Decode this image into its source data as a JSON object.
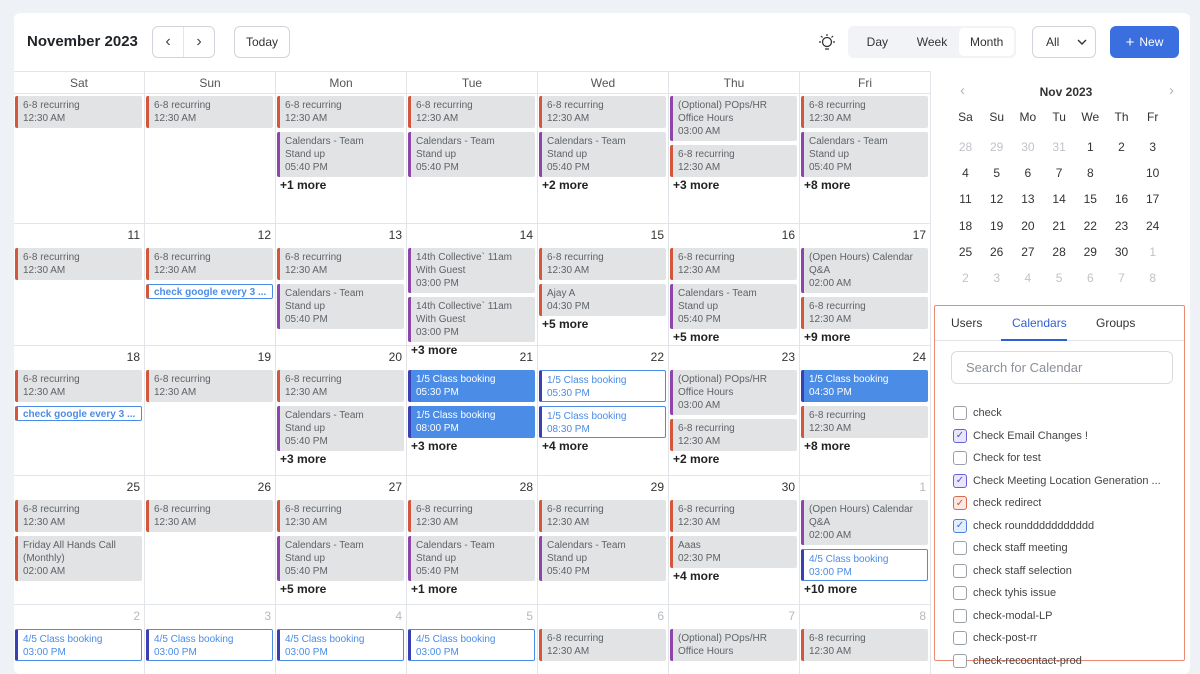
{
  "header": {
    "month_title": "November 2023",
    "prev_icon": "‹",
    "next_icon": "›",
    "today_label": "Today",
    "views": [
      "Day",
      "Week",
      "Month"
    ],
    "active_view": "Month",
    "filter_value": "All",
    "new_label": "New"
  },
  "weekdays": [
    "Sat",
    "Sun",
    "Mon",
    "Tue",
    "Wed",
    "Thu",
    "Fri"
  ],
  "weeks": [
    [
      {
        "day": "",
        "dim": false,
        "events": [
          {
            "l1": "6-8 recurring",
            "l2": "12:30 AM",
            "kind": "red"
          }
        ],
        "more": ""
      },
      {
        "day": "",
        "dim": false,
        "events": [
          {
            "l1": "6-8 recurring",
            "l2": "12:30 AM",
            "kind": "red"
          }
        ],
        "more": ""
      },
      {
        "day": "",
        "dim": false,
        "events": [
          {
            "l1": "6-8 recurring",
            "l2": "12:30 AM",
            "kind": "red"
          },
          {
            "l1": "Calendars - Team",
            "l2": "Stand up",
            "l3": "05:40 PM",
            "kind": "purple"
          }
        ],
        "more": "+1 more"
      },
      {
        "day": "",
        "dim": false,
        "events": [
          {
            "l1": "6-8 recurring",
            "l2": "12:30 AM",
            "kind": "red"
          },
          {
            "l1": "Calendars - Team",
            "l2": "Stand up",
            "l3": "05:40 PM",
            "kind": "purple"
          }
        ],
        "more": ""
      },
      {
        "day": "",
        "dim": false,
        "events": [
          {
            "l1": "6-8 recurring",
            "l2": "12:30 AM",
            "kind": "red"
          },
          {
            "l1": "Calendars - Team",
            "l2": "Stand up",
            "l3": "05:40 PM",
            "kind": "purple"
          }
        ],
        "more": "+2 more"
      },
      {
        "day": "",
        "dim": false,
        "events": [
          {
            "l1": "(Optional) POps/HR",
            "l2": "Office Hours",
            "l3": "03:00 AM",
            "kind": "purple"
          },
          {
            "l1": "6-8 recurring",
            "l2": "12:30 AM",
            "kind": "red"
          }
        ],
        "more": "+3 more"
      },
      {
        "day": "",
        "dim": false,
        "events": [
          {
            "l1": "6-8 recurring",
            "l2": "12:30 AM",
            "kind": "red"
          },
          {
            "l1": "Calendars - Team",
            "l2": "Stand up",
            "l3": "05:40 PM",
            "kind": "purple"
          }
        ],
        "more": "+8 more"
      }
    ],
    [
      {
        "day": "11",
        "dim": false,
        "events": [
          {
            "l1": "6-8 recurring",
            "l2": "12:30 AM",
            "kind": "red"
          }
        ],
        "more": ""
      },
      {
        "day": "12",
        "dim": false,
        "events": [
          {
            "l1": "6-8 recurring",
            "l2": "12:30 AM",
            "kind": "red"
          },
          {
            "l1": "check google every 3 ...",
            "kind": "google"
          }
        ],
        "more": ""
      },
      {
        "day": "13",
        "dim": false,
        "events": [
          {
            "l1": "6-8 recurring",
            "l2": "12:30 AM",
            "kind": "red"
          },
          {
            "l1": "Calendars - Team",
            "l2": "Stand up",
            "l3": "05:40 PM",
            "kind": "purple"
          }
        ],
        "more": ""
      },
      {
        "day": "14",
        "dim": false,
        "events": [
          {
            "l1": "14th Collective` 11am",
            "l2": "With Guest",
            "l3": "03:00 PM",
            "kind": "purple"
          },
          {
            "l1": "14th Collective` 11am",
            "l2": "With Guest",
            "l3": "03:00 PM",
            "kind": "purple"
          }
        ],
        "more": "+3 more"
      },
      {
        "day": "15",
        "dim": false,
        "events": [
          {
            "l1": "6-8 recurring",
            "l2": "12:30 AM",
            "kind": "red"
          },
          {
            "l1": "Ajay A",
            "l2": "04:30 PM",
            "kind": "red"
          }
        ],
        "more": "+5 more"
      },
      {
        "day": "16",
        "dim": false,
        "events": [
          {
            "l1": "6-8 recurring",
            "l2": "12:30 AM",
            "kind": "red"
          },
          {
            "l1": "Calendars - Team",
            "l2": "Stand up",
            "l3": "05:40 PM",
            "kind": "purple"
          }
        ],
        "more": "+5 more"
      },
      {
        "day": "17",
        "dim": false,
        "events": [
          {
            "l1": "(Open Hours) Calendar",
            "l2": "Q&A",
            "l3": "02:00 AM",
            "kind": "purple"
          },
          {
            "l1": "6-8 recurring",
            "l2": "12:30 AM",
            "kind": "red"
          }
        ],
        "more": "+9 more"
      }
    ],
    [
      {
        "day": "18",
        "dim": false,
        "events": [
          {
            "l1": "6-8 recurring",
            "l2": "12:30 AM",
            "kind": "red"
          },
          {
            "l1": "check google every 3 ...",
            "kind": "google"
          }
        ],
        "more": ""
      },
      {
        "day": "19",
        "dim": false,
        "events": [
          {
            "l1": "6-8 recurring",
            "l2": "12:30 AM",
            "kind": "red"
          }
        ],
        "more": ""
      },
      {
        "day": "20",
        "dim": false,
        "events": [
          {
            "l1": "6-8 recurring",
            "l2": "12:30 AM",
            "kind": "red"
          },
          {
            "l1": "Calendars - Team",
            "l2": "Stand up",
            "l3": "05:40 PM",
            "kind": "purple"
          }
        ],
        "more": "+3 more"
      },
      {
        "day": "21",
        "dim": false,
        "events": [
          {
            "l1": "1/5  Class booking",
            "l2": "05:30 PM",
            "kind": "booking"
          },
          {
            "l1": "1/5  Class booking",
            "l2": "08:00 PM",
            "kind": "booking"
          }
        ],
        "more": "+3 more"
      },
      {
        "day": "22",
        "dim": false,
        "events": [
          {
            "l1": "1/5  Class booking",
            "l2": "05:30 PM",
            "kind": "booking-out"
          },
          {
            "l1": "1/5  Class booking",
            "l2": "08:30 PM",
            "kind": "booking-out"
          }
        ],
        "more": "+4 more"
      },
      {
        "day": "23",
        "dim": false,
        "events": [
          {
            "l1": "(Optional) POps/HR",
            "l2": "Office Hours",
            "l3": "03:00 AM",
            "kind": "purple"
          },
          {
            "l1": "6-8 recurring",
            "l2": "12:30 AM",
            "kind": "red"
          }
        ],
        "more": "+2 more"
      },
      {
        "day": "24",
        "dim": false,
        "events": [
          {
            "l1": "1/5  Class booking",
            "l2": "04:30 PM",
            "kind": "booking"
          },
          {
            "l1": "6-8 recurring",
            "l2": "12:30 AM",
            "kind": "red"
          }
        ],
        "more": "+8 more"
      }
    ],
    [
      {
        "day": "25",
        "dim": false,
        "events": [
          {
            "l1": "6-8 recurring",
            "l2": "12:30 AM",
            "kind": "red"
          },
          {
            "l1": "Friday All Hands Call",
            "l2": "(Monthly)",
            "l3": "02:00 AM",
            "kind": "red"
          }
        ],
        "more": ""
      },
      {
        "day": "26",
        "dim": false,
        "events": [
          {
            "l1": "6-8 recurring",
            "l2": "12:30 AM",
            "kind": "red"
          }
        ],
        "more": ""
      },
      {
        "day": "27",
        "dim": false,
        "events": [
          {
            "l1": "6-8 recurring",
            "l2": "12:30 AM",
            "kind": "red"
          },
          {
            "l1": "Calendars - Team",
            "l2": "Stand up",
            "l3": "05:40 PM",
            "kind": "purple"
          }
        ],
        "more": "+5 more"
      },
      {
        "day": "28",
        "dim": false,
        "events": [
          {
            "l1": "6-8 recurring",
            "l2": "12:30 AM",
            "kind": "red"
          },
          {
            "l1": "Calendars - Team",
            "l2": "Stand up",
            "l3": "05:40 PM",
            "kind": "purple"
          }
        ],
        "more": "+1 more"
      },
      {
        "day": "29",
        "dim": false,
        "events": [
          {
            "l1": "6-8 recurring",
            "l2": "12:30 AM",
            "kind": "red"
          },
          {
            "l1": "Calendars - Team",
            "l2": "Stand up",
            "l3": "05:40 PM",
            "kind": "purple"
          }
        ],
        "more": ""
      },
      {
        "day": "30",
        "dim": false,
        "events": [
          {
            "l1": "6-8 recurring",
            "l2": "12:30 AM",
            "kind": "red"
          },
          {
            "l1": "Aaas",
            "l2": "02:30 PM",
            "kind": "red"
          }
        ],
        "more": "+4 more"
      },
      {
        "day": "1",
        "dim": true,
        "events": [
          {
            "l1": "(Open Hours) Calendar",
            "l2": "Q&A",
            "l3": "02:00 AM",
            "kind": "purple"
          },
          {
            "l1": "4/5  Class booking",
            "l2": "03:00 PM",
            "kind": "booking-out"
          }
        ],
        "more": "+10 more"
      }
    ],
    [
      {
        "day": "2",
        "dim": true,
        "events": [
          {
            "l1": "4/5  Class booking",
            "l2": "03:00 PM",
            "kind": "booking-out"
          }
        ],
        "more": ""
      },
      {
        "day": "3",
        "dim": true,
        "events": [
          {
            "l1": "4/5  Class booking",
            "l2": "03:00 PM",
            "kind": "booking-out"
          }
        ],
        "more": ""
      },
      {
        "day": "4",
        "dim": true,
        "events": [
          {
            "l1": "4/5  Class booking",
            "l2": "03:00 PM",
            "kind": "booking-out"
          }
        ],
        "more": ""
      },
      {
        "day": "5",
        "dim": true,
        "events": [
          {
            "l1": "4/5  Class booking",
            "l2": "03:00 PM",
            "kind": "booking-out"
          }
        ],
        "more": ""
      },
      {
        "day": "6",
        "dim": true,
        "events": [
          {
            "l1": "6-8 recurring",
            "l2": "12:30 AM",
            "kind": "red"
          }
        ],
        "more": ""
      },
      {
        "day": "7",
        "dim": true,
        "events": [
          {
            "l1": "(Optional) POps/HR",
            "l2": "Office Hours",
            "kind": "purple"
          }
        ],
        "more": ""
      },
      {
        "day": "8",
        "dim": true,
        "events": [
          {
            "l1": "6-8 recurring",
            "l2": "12:30 AM",
            "kind": "red"
          }
        ],
        "more": ""
      }
    ]
  ],
  "mini_calendar": {
    "title": "Nov 2023",
    "prev_icon": "‹",
    "next_icon": "›",
    "weekdays": [
      "Sa",
      "Su",
      "Mo",
      "Tu",
      "We",
      "Th",
      "Fr"
    ],
    "selected": "9",
    "rows": [
      [
        {
          "d": "28",
          "dim": true
        },
        {
          "d": "29",
          "dim": true
        },
        {
          "d": "30",
          "dim": true
        },
        {
          "d": "31",
          "dim": true
        },
        {
          "d": "1"
        },
        {
          "d": "2"
        },
        {
          "d": "3"
        }
      ],
      [
        {
          "d": "4"
        },
        {
          "d": "5"
        },
        {
          "d": "6"
        },
        {
          "d": "7"
        },
        {
          "d": "8"
        },
        {
          "d": "9"
        },
        {
          "d": "10"
        }
      ],
      [
        {
          "d": "11"
        },
        {
          "d": "12"
        },
        {
          "d": "13"
        },
        {
          "d": "14"
        },
        {
          "d": "15"
        },
        {
          "d": "16"
        },
        {
          "d": "17"
        }
      ],
      [
        {
          "d": "18"
        },
        {
          "d": "19"
        },
        {
          "d": "20"
        },
        {
          "d": "21"
        },
        {
          "d": "22"
        },
        {
          "d": "23"
        },
        {
          "d": "24"
        }
      ],
      [
        {
          "d": "25"
        },
        {
          "d": "26"
        },
        {
          "d": "27"
        },
        {
          "d": "28"
        },
        {
          "d": "29"
        },
        {
          "d": "30"
        },
        {
          "d": "1",
          "dim": true
        }
      ],
      [
        {
          "d": "2",
          "dim": true
        },
        {
          "d": "3",
          "dim": true
        },
        {
          "d": "4",
          "dim": true
        },
        {
          "d": "5",
          "dim": true
        },
        {
          "d": "6",
          "dim": true
        },
        {
          "d": "7",
          "dim": true
        },
        {
          "d": "8",
          "dim": true
        }
      ]
    ]
  },
  "panel": {
    "tabs": [
      "Users",
      "Calendars",
      "Groups"
    ],
    "active_tab": "Calendars",
    "search_placeholder": "Search for Calendar",
    "calendars": [
      {
        "name": "check",
        "checked": false,
        "color": ""
      },
      {
        "name": "Check Email Changes !",
        "checked": true,
        "color": "c1"
      },
      {
        "name": "Check for test",
        "checked": false,
        "color": ""
      },
      {
        "name": "Check Meeting Location Generation ...",
        "checked": true,
        "color": "c1"
      },
      {
        "name": "check redirect",
        "checked": true,
        "color": "c2"
      },
      {
        "name": "check rounddddddddddd",
        "checked": true,
        "color": "c3"
      },
      {
        "name": "check staff meeting",
        "checked": false,
        "color": ""
      },
      {
        "name": "check staff selection",
        "checked": false,
        "color": ""
      },
      {
        "name": "check tyhis issue",
        "checked": false,
        "color": ""
      },
      {
        "name": "check-modal-LP",
        "checked": false,
        "color": ""
      },
      {
        "name": "check-post-rr",
        "checked": false,
        "color": ""
      },
      {
        "name": "check-recocntact-prod",
        "checked": false,
        "color": ""
      }
    ]
  },
  "colors": {
    "accent": "#3b6fe0",
    "event_bg": "#e2e3e5",
    "recurring_border": "#d4573b",
    "team_border": "#8e44ad",
    "booking": "#4a8ce6"
  }
}
